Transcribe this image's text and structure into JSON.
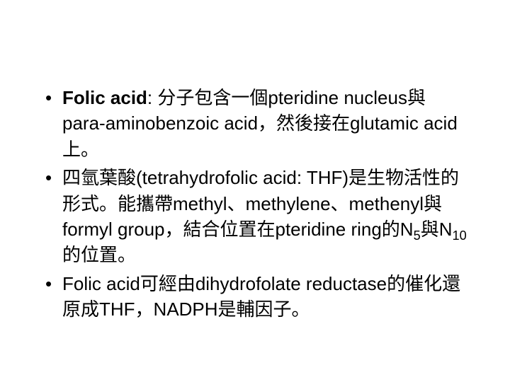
{
  "bullets": [
    {
      "bold_lead": "Folic acid",
      "rest": ": 分子包含一個pteridine nucleus與para-aminobenzoic acid，然後接在glutamic acid上。"
    },
    {
      "pre": "四氫葉酸(tetrahydrofolic acid: THF)是生物活性的形式。能攜帶methyl、methylene、methenyl與formyl group，結合位置在pteridine ring的N",
      "sub1": "5",
      "mid": "與N",
      "sub2": "10",
      "post": "的位置。"
    },
    {
      "text": "Folic acid可經由dihydrofolate reductase的催化還原成THF，NADPH是輔因子。"
    }
  ],
  "style": {
    "background_color": "#ffffff",
    "text_color": "#000000",
    "font_size_pt": 26,
    "bullet_char": "•",
    "slide_width": 720,
    "slide_height": 540
  }
}
